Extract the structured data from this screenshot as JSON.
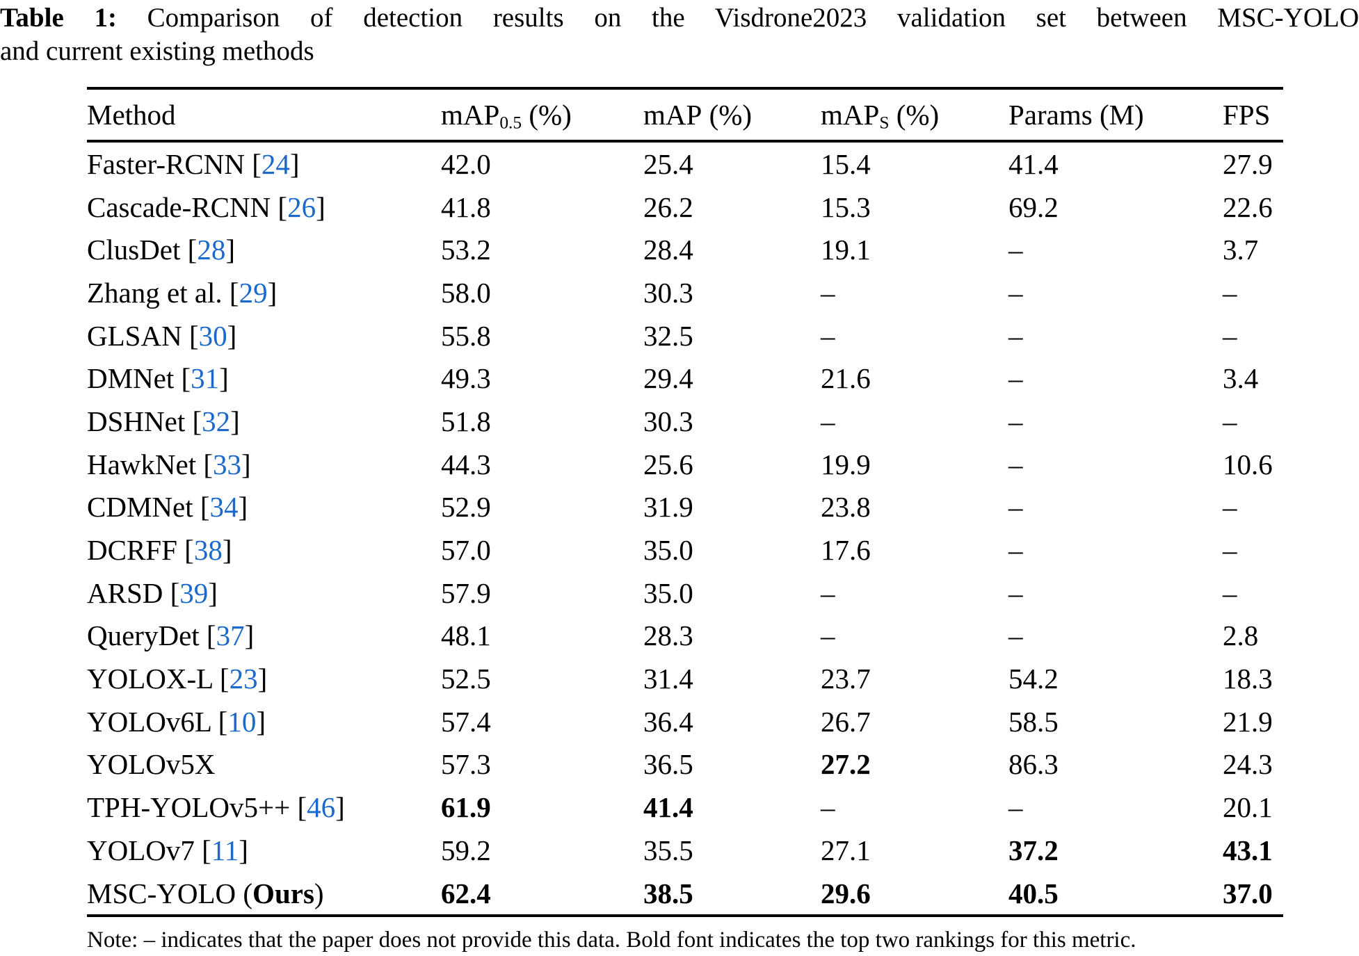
{
  "caption": {
    "label": "Table 1:",
    "line1_rest": "Comparison of detection results on the Visdrone2023 validation set between MSC-YOLO",
    "line2": "and current existing methods"
  },
  "table": {
    "columns": [
      {
        "label": "Method"
      },
      {
        "base": "mAP",
        "sub": "0.5",
        "suffix": " (%)"
      },
      {
        "base": "mAP",
        "suffix": " (%)"
      },
      {
        "base": "mAP",
        "sub": "S",
        "suffix": " (%)"
      },
      {
        "label": "Params (M)"
      },
      {
        "label": "FPS"
      }
    ],
    "rows": [
      {
        "method": "Faster-RCNN",
        "cite": "24",
        "values": [
          {
            "v": "42.0"
          },
          {
            "v": "25.4"
          },
          {
            "v": "15.4"
          },
          {
            "v": "41.4"
          },
          {
            "v": "27.9"
          }
        ]
      },
      {
        "method": "Cascade-RCNN",
        "cite": "26",
        "values": [
          {
            "v": "41.8"
          },
          {
            "v": "26.2"
          },
          {
            "v": "15.3"
          },
          {
            "v": "69.2"
          },
          {
            "v": "22.6"
          }
        ]
      },
      {
        "method": "ClusDet",
        "cite": "28",
        "values": [
          {
            "v": "53.2"
          },
          {
            "v": "28.4"
          },
          {
            "v": "19.1"
          },
          {
            "v": "–"
          },
          {
            "v": "3.7"
          }
        ]
      },
      {
        "method": "Zhang et al.",
        "cite": "29",
        "values": [
          {
            "v": "58.0"
          },
          {
            "v": "30.3"
          },
          {
            "v": "–"
          },
          {
            "v": "–"
          },
          {
            "v": "–"
          }
        ]
      },
      {
        "method": "GLSAN",
        "cite": "30",
        "values": [
          {
            "v": "55.8"
          },
          {
            "v": "32.5"
          },
          {
            "v": "–"
          },
          {
            "v": "–"
          },
          {
            "v": "–"
          }
        ]
      },
      {
        "method": "DMNet",
        "cite": "31",
        "values": [
          {
            "v": "49.3"
          },
          {
            "v": "29.4"
          },
          {
            "v": "21.6"
          },
          {
            "v": "–"
          },
          {
            "v": "3.4"
          }
        ]
      },
      {
        "method": "DSHNet",
        "cite": "32",
        "values": [
          {
            "v": "51.8"
          },
          {
            "v": "30.3"
          },
          {
            "v": "–"
          },
          {
            "v": "–"
          },
          {
            "v": "–"
          }
        ]
      },
      {
        "method": "HawkNet",
        "cite": "33",
        "values": [
          {
            "v": "44.3"
          },
          {
            "v": "25.6"
          },
          {
            "v": "19.9"
          },
          {
            "v": "–"
          },
          {
            "v": "10.6"
          }
        ]
      },
      {
        "method": "CDMNet",
        "cite": "34",
        "values": [
          {
            "v": "52.9"
          },
          {
            "v": "31.9"
          },
          {
            "v": "23.8"
          },
          {
            "v": "–"
          },
          {
            "v": "–"
          }
        ]
      },
      {
        "method": "DCRFF",
        "cite": "38",
        "values": [
          {
            "v": "57.0"
          },
          {
            "v": "35.0"
          },
          {
            "v": "17.6"
          },
          {
            "v": "–"
          },
          {
            "v": "–"
          }
        ]
      },
      {
        "method": "ARSD",
        "cite": "39",
        "values": [
          {
            "v": "57.9"
          },
          {
            "v": "35.0"
          },
          {
            "v": "–"
          },
          {
            "v": "–"
          },
          {
            "v": "–"
          }
        ]
      },
      {
        "method": "QueryDet",
        "cite": "37",
        "values": [
          {
            "v": "48.1"
          },
          {
            "v": "28.3"
          },
          {
            "v": "–"
          },
          {
            "v": "–"
          },
          {
            "v": "2.8"
          }
        ]
      },
      {
        "method": "YOLOX-L",
        "cite": "23",
        "values": [
          {
            "v": "52.5"
          },
          {
            "v": "31.4"
          },
          {
            "v": "23.7"
          },
          {
            "v": "54.2"
          },
          {
            "v": "18.3"
          }
        ]
      },
      {
        "method": "YOLOv6L",
        "cite": "10",
        "values": [
          {
            "v": "57.4"
          },
          {
            "v": "36.4"
          },
          {
            "v": "26.7"
          },
          {
            "v": "58.5"
          },
          {
            "v": "21.9"
          }
        ]
      },
      {
        "method": "YOLOv5X",
        "values": [
          {
            "v": "57.3"
          },
          {
            "v": "36.5"
          },
          {
            "v": "27.2",
            "b": true
          },
          {
            "v": "86.3"
          },
          {
            "v": "24.3"
          }
        ]
      },
      {
        "method": "TPH-YOLOv5++",
        "cite": "46",
        "values": [
          {
            "v": "61.9",
            "b": true
          },
          {
            "v": "41.4",
            "b": true
          },
          {
            "v": "–"
          },
          {
            "v": "–"
          },
          {
            "v": "20.1"
          }
        ]
      },
      {
        "method": "YOLOv7",
        "cite": "11",
        "values": [
          {
            "v": "59.2"
          },
          {
            "v": "35.5"
          },
          {
            "v": "27.1"
          },
          {
            "v": "37.2",
            "b": true
          },
          {
            "v": "43.1",
            "b": true
          }
        ]
      },
      {
        "method": "MSC-YOLO",
        "ours": "Ours",
        "values": [
          {
            "v": "62.4",
            "b": true
          },
          {
            "v": "38.5",
            "b": true
          },
          {
            "v": "29.6",
            "b": true
          },
          {
            "v": "40.5",
            "b": true
          },
          {
            "v": "37.0",
            "b": true
          }
        ]
      }
    ]
  },
  "note": "Note: – indicates that the paper does not provide this data. Bold font indicates the top two rankings for this metric.",
  "colors": {
    "citation_blue": "#1b6acb",
    "text": "#000000",
    "background": "#ffffff"
  }
}
